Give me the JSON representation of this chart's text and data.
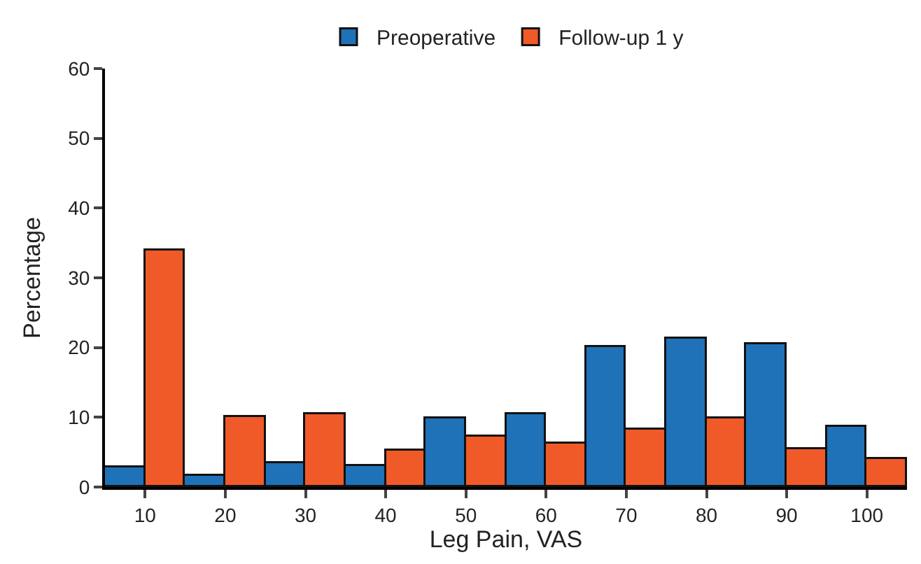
{
  "chart_data": {
    "type": "bar",
    "xlabel": "Leg Pain, VAS",
    "ylabel": "Percentage",
    "categories": [
      "10",
      "20",
      "30",
      "40",
      "50",
      "60",
      "70",
      "80",
      "90",
      "100"
    ],
    "series": [
      {
        "name": "Preoperative",
        "color": "#1f72b8",
        "values": [
          2.8,
          1.7,
          3.4,
          3.1,
          9.8,
          10.5,
          20,
          21.2,
          20.5,
          8.6
        ]
      },
      {
        "name": "Follow-up 1 y",
        "color": "#f05a28",
        "values": [
          34,
          10.1,
          10.4,
          5.2,
          7.3,
          6.3,
          8.3,
          9.9,
          5.5,
          4.0
        ]
      }
    ],
    "ylim": [
      0,
      60
    ],
    "yticks": [
      0,
      10,
      20,
      30,
      40,
      50,
      60
    ],
    "legend": "top"
  }
}
